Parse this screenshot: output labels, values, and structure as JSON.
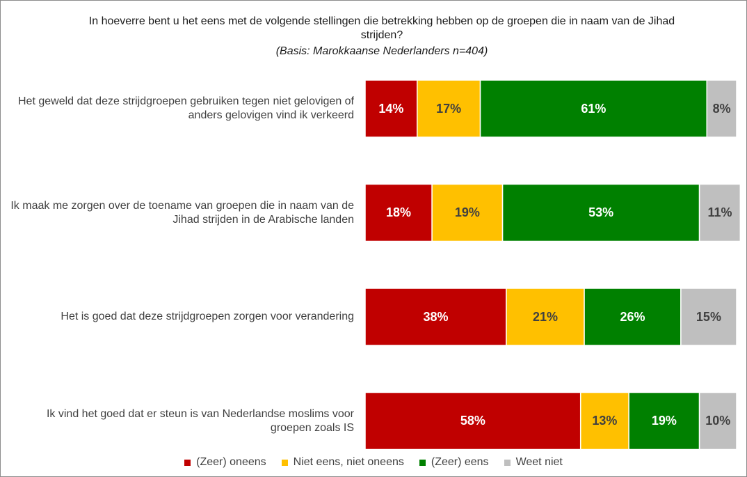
{
  "chart_data": {
    "type": "stacked-bar-horizontal",
    "title": "In hoeverre bent u het eens met de volgende stellingen die betrekking hebben op de groepen die in naam van de Jihad strijden?",
    "subtitle": "(Basis: Marokkaanse Nederlanders n=404)",
    "categories": [
      "Het geweld dat deze strijdgroepen gebruiken tegen niet gelovigen of anders gelovigen vind ik verkeerd",
      "Ik maak me zorgen over de toename van groepen die in naam van de Jihad strijden in de Arabische landen",
      "Het is goed dat deze strijdgroepen zorgen voor verandering",
      "Ik vind het goed dat er steun is van Nederlandse moslims voor groepen zoals IS"
    ],
    "xlim": [
      0,
      100
    ],
    "legend": "bottom",
    "series": [
      {
        "name": "(Zeer) oneens",
        "color": "#c00000",
        "label_color": "#ffffff",
        "values": [
          14,
          18,
          38,
          58
        ],
        "value_labels": [
          "14%",
          "18%",
          "38%",
          "58%"
        ]
      },
      {
        "name": "Niet eens, niet oneens",
        "color": "#ffc000",
        "label_color": "#404040",
        "values": [
          17,
          19,
          21,
          13
        ],
        "value_labels": [
          "17%",
          "19%",
          "21%",
          "13%"
        ]
      },
      {
        "name": "(Zeer) eens",
        "color": "#008000",
        "label_color": "#ffffff",
        "values": [
          61,
          53,
          26,
          19
        ],
        "value_labels": [
          "61%",
          "53%",
          "26%",
          "19%"
        ]
      },
      {
        "name": "Weet niet",
        "color": "#bfbfbf",
        "label_color": "#404040",
        "values": [
          8,
          11,
          15,
          10
        ],
        "value_labels": [
          "8%",
          "11%",
          "15%",
          "10%"
        ]
      }
    ]
  }
}
